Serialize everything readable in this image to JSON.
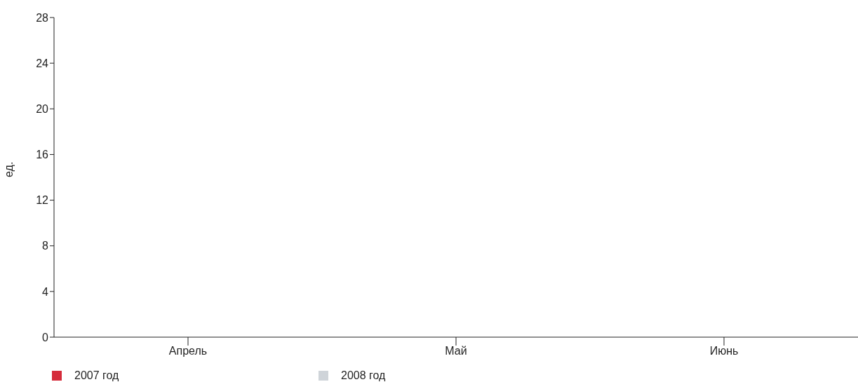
{
  "chart_data": {
    "type": "bar",
    "ylabel": "ед.",
    "categories": [
      "Апрель",
      "Май",
      "Июнь"
    ],
    "series": [
      {
        "name": "2007 год",
        "color": "#d52b3a",
        "values": [
          null,
          null,
          null
        ]
      },
      {
        "name": "2008 год",
        "color": "#cfd4d9",
        "values": [
          null,
          null,
          null
        ]
      }
    ],
    "ylim": [
      0,
      28
    ],
    "yticks": [
      0,
      4,
      8,
      12,
      16,
      20,
      24,
      28
    ],
    "grid": false,
    "legend": "bottom left"
  }
}
